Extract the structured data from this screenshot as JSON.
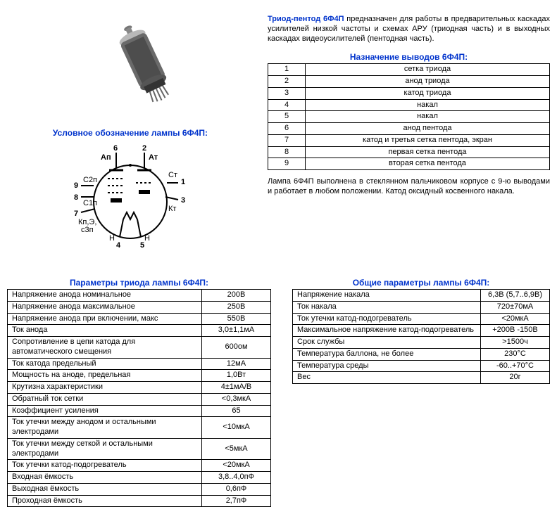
{
  "intro": {
    "title_bold": "Триод-пентод 6Ф4П",
    "text": " предназначен для работы в предварительных каскадах усилителей низкой частоты и схемах АРУ (триодная часть) и в выходных каскадах видеоусилителей (пентодная часть)."
  },
  "headers": {
    "pinout": "Назначение выводов 6Ф4П:",
    "symbol": "Условное обозначение лампы 6Ф4П:",
    "triode": "Параметры триода лампы 6Ф4П:",
    "general": "Общие параметры лампы 6Ф4П:"
  },
  "pinout": [
    {
      "n": "1",
      "label": "сетка триода"
    },
    {
      "n": "2",
      "label": "анод триода"
    },
    {
      "n": "3",
      "label": "катод триода"
    },
    {
      "n": "4",
      "label": "накал"
    },
    {
      "n": "5",
      "label": "накал"
    },
    {
      "n": "6",
      "label": "анод пентода"
    },
    {
      "n": "7",
      "label": "катод и третья сетка пентода, экран"
    },
    {
      "n": "8",
      "label": "первая сетка пентода"
    },
    {
      "n": "9",
      "label": "вторая сетка пентода"
    }
  ],
  "pin_diagram": {
    "labels": [
      "1",
      "2",
      "3",
      "4",
      "5",
      "6",
      "7",
      "8",
      "9"
    ],
    "text": {
      "Ap": "Ап",
      "At": "Ат",
      "C2p": "С2п",
      "C1p": "С1п",
      "Kp": "Кп,Э,\nс3п",
      "Ct": "Ст",
      "Kt": "Кт",
      "H1": "Н",
      "H2": "Н"
    },
    "colors": {
      "stroke": "#000",
      "fill": "#fff"
    }
  },
  "construction": "Лампа 6Ф4П выполнена в стеклянном пальчиковом корпусе с 9-ю выводами и работает в любом положении. Катод оксидный косвенного накала.",
  "triode_params": [
    {
      "name": "Напряжение анода номинальное",
      "val": "200В"
    },
    {
      "name": "Напряжение анода максимальное",
      "val": "250В"
    },
    {
      "name": "Напряжение анода при включении, макс",
      "val": "550В"
    },
    {
      "name": "Ток анода",
      "val": "3,0±1,1мА"
    },
    {
      "name": "Сопротивление в цепи катода для автоматического смещения",
      "val": "600ом"
    },
    {
      "name": "Ток катода предельный",
      "val": "12мА"
    },
    {
      "name": "Мощность на аноде, предельная",
      "val": "1,0Вт"
    },
    {
      "name": "Крутизна характеристики",
      "val": "4±1мА/В"
    },
    {
      "name": "Обратный ток сетки",
      "val": "<0,3мкА"
    },
    {
      "name": "Коэффициент усиления",
      "val": "65"
    },
    {
      "name": "Ток утечки между анодом и остальными электродами",
      "val": "<10мкА"
    },
    {
      "name": "Ток утечки между сеткой и остальными электродами",
      "val": "<5мкА"
    },
    {
      "name": "Ток утечки катод-подогреватель",
      "val": "<20мкА"
    },
    {
      "name": "Входная ёмкость",
      "val": "3,8..4,0пФ"
    },
    {
      "name": "Выходная ёмкость",
      "val": "0,6пФ"
    },
    {
      "name": "Проходная ёмкость",
      "val": "2,7пФ"
    }
  ],
  "general_params": [
    {
      "name": "Напряжение накала",
      "val": "6,3В (5,7..6,9В)"
    },
    {
      "name": "Ток накала",
      "val": "720±70мА"
    },
    {
      "name": "Ток утечки катод-подогреватель",
      "val": "<20мкА"
    },
    {
      "name": "Максимальное напряжение катод-подогреватель",
      "val": "+200В -150В"
    },
    {
      "name": "Срок службы",
      "val": ">1500ч"
    },
    {
      "name": "Температура баллона, не более",
      "val": "230°С"
    },
    {
      "name": "Температура среды",
      "val": "-60..+70°С"
    },
    {
      "name": "Вес",
      "val": "20г"
    }
  ],
  "tube_photo": {
    "body_color": "#5a5a5a",
    "glass_color": "#cfcfcf",
    "pin_color": "#888"
  }
}
